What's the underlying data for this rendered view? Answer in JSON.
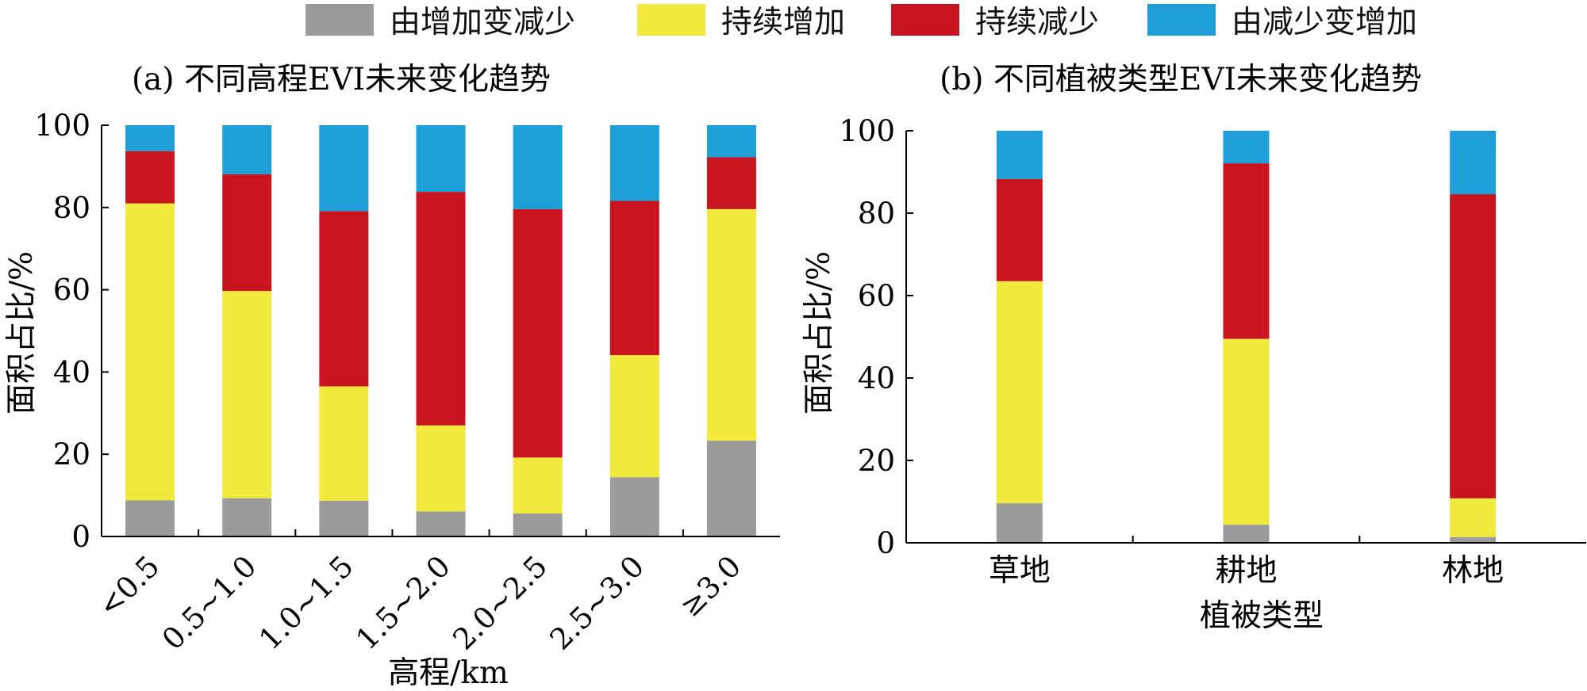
{
  "legend": [
    {
      "name": "由增加变减少",
      "color": "#9b9b9b"
    },
    {
      "name": "持续增加",
      "color": "#f2e93d"
    },
    {
      "name": "持续减少",
      "color": "#c8151f"
    },
    {
      "name": "由减少变增加",
      "color": "#1e9fd8"
    }
  ],
  "chart_data": [
    {
      "type": "bar",
      "stacked": true,
      "title": "(a) 不同高程EVI未来变化趋势",
      "xlabel": "高程/km",
      "ylabel": "面积占比/%",
      "ylim": [
        0,
        100
      ],
      "yticks": [
        "0",
        "20",
        "40",
        "60",
        "80",
        "100"
      ],
      "categories": [
        "<0.5",
        "0.5~1.0",
        "1.0~1.5",
        "1.5~2.0",
        "2.0~2.5",
        "2.5~3.0",
        "≥3.0"
      ],
      "series": [
        {
          "name": "由增加变减少",
          "values": [
            8.8,
            9.3,
            8.7,
            6.1,
            5.6,
            14.4,
            23.3
          ]
        },
        {
          "name": "持续增加",
          "values": [
            72.2,
            50.4,
            27.8,
            20.9,
            13.6,
            29.7,
            56.3
          ]
        },
        {
          "name": "持续减少",
          "values": [
            12.7,
            28.4,
            42.6,
            56.8,
            60.4,
            37.5,
            12.6
          ]
        },
        {
          "name": "由减少变增加",
          "values": [
            6.3,
            11.9,
            20.9,
            16.2,
            20.4,
            18.4,
            7.8
          ]
        }
      ]
    },
    {
      "type": "bar",
      "stacked": true,
      "title": "(b) 不同植被类型EVI未来变化趋势",
      "xlabel": "植被类型",
      "ylabel": "面积占比/%",
      "ylim": [
        0,
        100
      ],
      "yticks": [
        "0",
        "20",
        "40",
        "60",
        "80",
        "100"
      ],
      "categories": [
        "草地",
        "耕地",
        "林地"
      ],
      "series": [
        {
          "name": "由增加变减少",
          "values": [
            9.6,
            4.4,
            1.4
          ]
        },
        {
          "name": "持续增加",
          "values": [
            53.9,
            45.1,
            9.4
          ]
        },
        {
          "name": "持续减少",
          "values": [
            24.8,
            42.6,
            73.8
          ]
        },
        {
          "name": "由减少变增加",
          "values": [
            11.7,
            7.9,
            15.4
          ]
        }
      ]
    }
  ]
}
